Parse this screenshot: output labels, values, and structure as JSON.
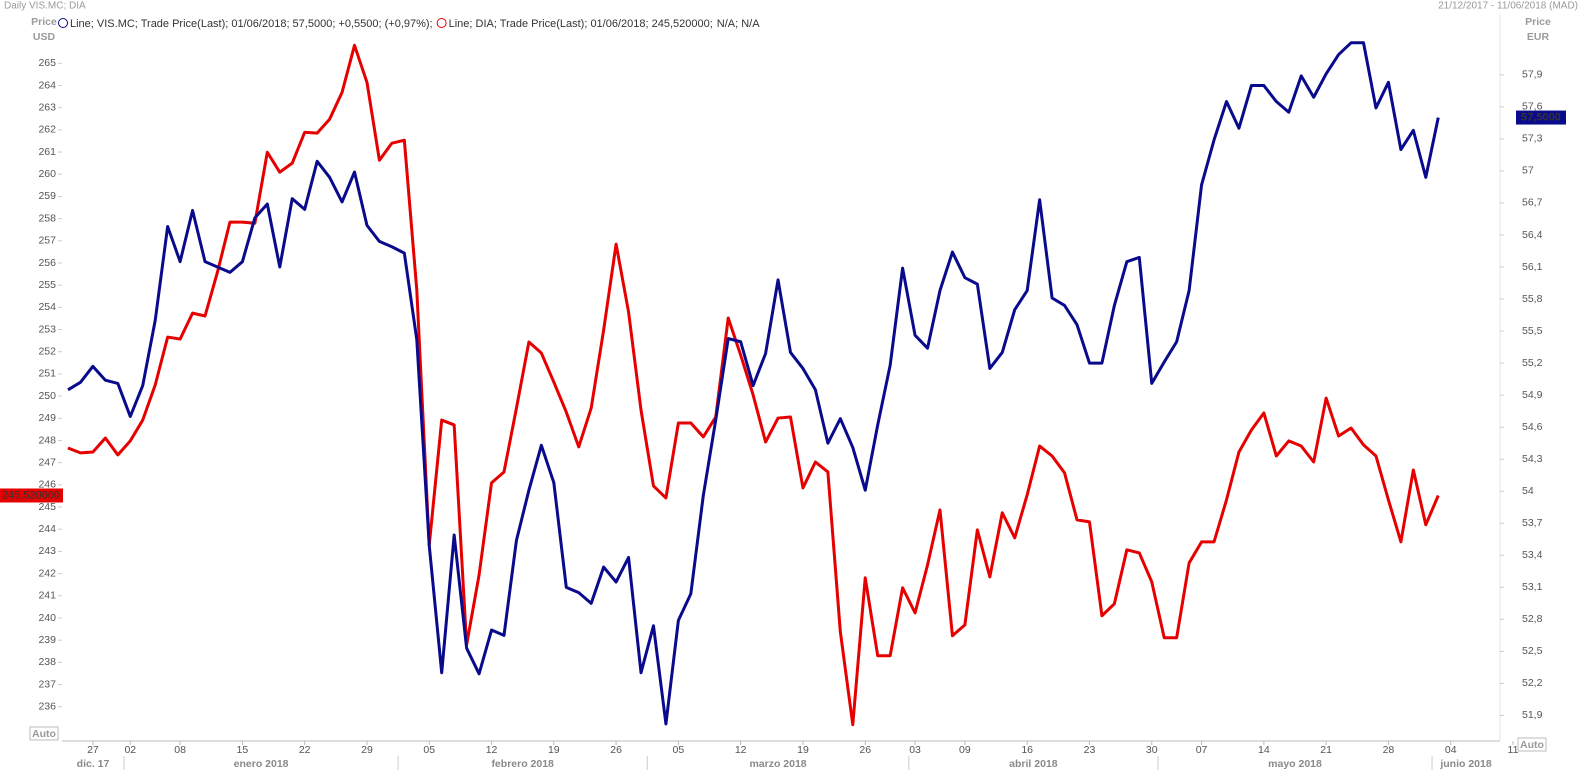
{
  "chart_data": {
    "type": "line",
    "title": "Daily VIS.MC; DIA",
    "date_range": "21/12/2017 - 11/06/2018 (MAD)",
    "y_label": [
      "Price",
      "USD"
    ],
    "y2_label": [
      "Price",
      "EUR"
    ],
    "autoscale_label": "Auto",
    "categories": [
      null,
      null,
      "27",
      null,
      null,
      "02",
      null,
      null,
      null,
      "08",
      null,
      null,
      null,
      null,
      "15",
      null,
      null,
      null,
      null,
      "22",
      null,
      null,
      null,
      null,
      "29",
      null,
      null,
      null,
      null,
      "05",
      null,
      null,
      null,
      null,
      "12",
      null,
      null,
      null,
      null,
      "19",
      null,
      null,
      null,
      null,
      "26",
      null,
      null,
      null,
      null,
      "05",
      null,
      null,
      null,
      null,
      "12",
      null,
      null,
      null,
      null,
      "19",
      null,
      null,
      null,
      null,
      "26",
      null,
      null,
      null,
      "03",
      null,
      null,
      null,
      "09",
      null,
      null,
      null,
      null,
      "16",
      null,
      null,
      null,
      null,
      "23",
      null,
      null,
      null,
      null,
      "30",
      null,
      null,
      null,
      "07",
      null,
      null,
      null,
      null,
      "14",
      null,
      null,
      null,
      null,
      "21",
      null,
      null,
      null,
      null,
      "28",
      null,
      null,
      null,
      null,
      "04",
      null,
      null,
      null,
      null,
      "11"
    ],
    "x_groups": [
      "dic. 17",
      "enero 2018",
      "febrero 2018",
      "marzo 2018",
      "abril 2018",
      "mayo 2018",
      "junio 2018"
    ],
    "ylim": [
      234.5,
      266.5
    ],
    "yticks": [
      236,
      237,
      238,
      239,
      240,
      241,
      242,
      243,
      244,
      245,
      246,
      247,
      248,
      249,
      250,
      251,
      252,
      253,
      254,
      255,
      256,
      257,
      258,
      259,
      260,
      261,
      262,
      263,
      264,
      265
    ],
    "y2lim": [
      51.67,
      58.32
    ],
    "y2ticks": [
      {
        "value": 51.9,
        "label": "51,9"
      },
      {
        "value": 52.2,
        "label": "52,2"
      },
      {
        "value": 52.5,
        "label": "52,5"
      },
      {
        "value": 52.8,
        "label": "52,8"
      },
      {
        "value": 53.1,
        "label": "53,1"
      },
      {
        "value": 53.4,
        "label": "53,4"
      },
      {
        "value": 53.7,
        "label": "53,7"
      },
      54,
      {
        "value": 54.3,
        "label": "54,3"
      },
      {
        "value": 54.6,
        "label": "54,6"
      },
      {
        "value": 54.9,
        "label": "54,9"
      },
      {
        "value": 55.2,
        "label": "55,2"
      },
      {
        "value": 55.5,
        "label": "55,5"
      },
      {
        "value": 55.8,
        "label": "55,8"
      },
      {
        "value": 56.1,
        "label": "56,1"
      },
      {
        "value": 56.4,
        "label": "56,4"
      },
      {
        "value": 56.7,
        "label": "56,7"
      },
      57,
      {
        "value": 57.3,
        "label": "57,3"
      },
      {
        "value": 57.6,
        "label": "57,6"
      },
      {
        "value": 57.9,
        "label": "57,9"
      }
    ],
    "grid": false,
    "series": [
      {
        "name": "VIS.MC",
        "color": "#0a0a8c",
        "axis": "y2",
        "legend": "Line; VIS.MC; Trade Price(Last); 01/06/2018; 57,5000; +0,5500; (+0,97%);",
        "last_value_label": "57,5000",
        "values": [
          54.95,
          55.02,
          55.17,
          55.04,
          55.01,
          54.7,
          54.99,
          55.6,
          56.48,
          56.15,
          56.63,
          56.15,
          56.1,
          56.05,
          56.15,
          56.56,
          56.69,
          56.1,
          56.74,
          56.64,
          57.09,
          56.94,
          56.71,
          56.99,
          56.49,
          56.34,
          56.29,
          56.23,
          55.42,
          53.49,
          52.3,
          53.59,
          52.53,
          52.29,
          52.7,
          52.65,
          53.54,
          54.01,
          54.43,
          54.08,
          53.1,
          53.05,
          52.95,
          53.29,
          53.15,
          53.38,
          52.3,
          52.74,
          51.82,
          52.79,
          53.04,
          53.96,
          54.67,
          55.43,
          55.4,
          54.99,
          55.29,
          55.98,
          55.3,
          55.15,
          54.95,
          54.45,
          54.68,
          54.41,
          54.01,
          54.62,
          55.18,
          56.09,
          55.46,
          55.34,
          55.88,
          56.24,
          56.0,
          55.94,
          55.15,
          55.3,
          55.7,
          55.88,
          56.73,
          55.81,
          55.74,
          55.56,
          55.2,
          55.2,
          55.74,
          56.15,
          56.19,
          55.01,
          55.21,
          55.4,
          55.88,
          56.87,
          57.29,
          57.65,
          57.4,
          57.8,
          57.8,
          57.65,
          57.55,
          57.89,
          57.69,
          57.91,
          58.09,
          58.2,
          58.2,
          57.59,
          57.83,
          57.2,
          57.38,
          56.94,
          57.5,
          null,
          null,
          null,
          null,
          null,
          null
        ]
      },
      {
        "name": "DIA",
        "color": "#e60000",
        "axis": "y",
        "legend": "Line; DIA; Trade Price(Last); 01/06/2018; 245,520000;",
        "legend_extra": "N/A; N/A",
        "last_value_label": "245,520000",
        "values": [
          247.66,
          247.44,
          247.48,
          248.11,
          247.35,
          247.98,
          248.92,
          250.5,
          252.66,
          252.57,
          253.74,
          253.61,
          255.59,
          257.84,
          257.84,
          257.79,
          260.99,
          260.09,
          260.5,
          261.89,
          261.85,
          262.48,
          263.69,
          265.81,
          264.14,
          260.63,
          261.4,
          261.53,
          254.78,
          243.29,
          248.92,
          248.7,
          238.79,
          241.94,
          246.09,
          246.58,
          249.46,
          252.44,
          251.94,
          250.63,
          249.28,
          247.71,
          249.46,
          252.98,
          256.85,
          253.79,
          249.37,
          245.95,
          245.41,
          248.79,
          248.79,
          248.16,
          249.06,
          253.52,
          251.85,
          250.05,
          247.93,
          249.01,
          249.06,
          245.86,
          247.03,
          246.58,
          239.38,
          235.19,
          241.81,
          238.3,
          238.3,
          241.36,
          240.23,
          242.39,
          244.87,
          239.2,
          239.69,
          243.97,
          241.85,
          244.74,
          243.61,
          245.55,
          247.75,
          247.3,
          246.54,
          244.42,
          244.33,
          240.1,
          240.64,
          243.07,
          242.93,
          241.63,
          239.11,
          239.11,
          242.48,
          243.43,
          243.43,
          245.32,
          247.48,
          248.47,
          249.24,
          247.3,
          247.98,
          247.75,
          247.03,
          249.91,
          248.2,
          248.56,
          247.8,
          247.3,
          245.32,
          243.43,
          246.67,
          244.2,
          245.52,
          null,
          null,
          null,
          null,
          null,
          null
        ]
      }
    ]
  }
}
